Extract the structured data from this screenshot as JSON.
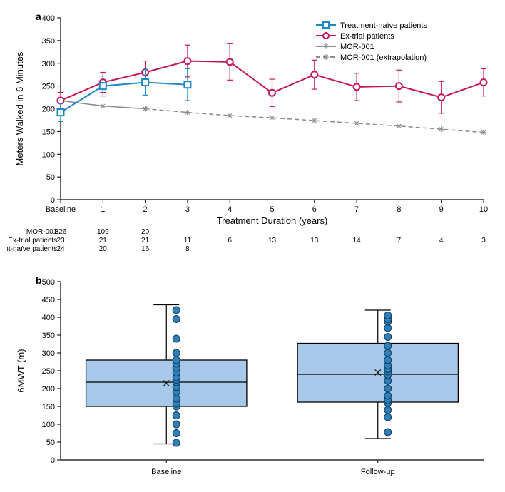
{
  "panelA": {
    "label": "a",
    "ylabel": "Meters Walked in 6 Minutes",
    "xlabel": "Treatment Duration (years)",
    "ylim": [
      0,
      400
    ],
    "ytick_step": 50,
    "x_categories": [
      "Baseline",
      "1",
      "2",
      "3",
      "4",
      "5",
      "6",
      "7",
      "8",
      "9",
      "10"
    ],
    "legend": {
      "naive": "Treatment-naïve patients",
      "extrial": "Ex-trial patients",
      "mor": "MOR-001",
      "mor_ex": "MOR-001 (extrapolation)"
    },
    "series": {
      "naive": {
        "color": "#1e88c7",
        "marker": "square-open",
        "linewidth": 2,
        "points": [
          {
            "x": 0,
            "y": 192,
            "err": 20
          },
          {
            "x": 1,
            "y": 250,
            "err": 22
          },
          {
            "x": 2,
            "y": 258,
            "err": 28
          },
          {
            "x": 3,
            "y": 253,
            "err": 35
          }
        ]
      },
      "extrial": {
        "color": "#c2185b",
        "marker": "circle-open",
        "linewidth": 2,
        "points": [
          {
            "x": 0,
            "y": 218,
            "err": 18
          },
          {
            "x": 1,
            "y": 258,
            "err": 22
          },
          {
            "x": 2,
            "y": 280,
            "err": 25
          },
          {
            "x": 3,
            "y": 305,
            "err": 35
          },
          {
            "x": 4,
            "y": 303,
            "err": 40
          },
          {
            "x": 5,
            "y": 235,
            "err": 30
          },
          {
            "x": 6,
            "y": 275,
            "err": 32
          },
          {
            "x": 7,
            "y": 248,
            "err": 30
          },
          {
            "x": 8,
            "y": 250,
            "err": 35
          },
          {
            "x": 9,
            "y": 225,
            "err": 35
          },
          {
            "x": 10,
            "y": 258,
            "err": 30
          }
        ]
      },
      "mor": {
        "color": "#8a8a8a",
        "marker": "asterisk",
        "linewidth": 1.5,
        "points": [
          {
            "x": 0,
            "y": 218
          },
          {
            "x": 1,
            "y": 206
          },
          {
            "x": 2,
            "y": 200
          }
        ]
      },
      "mor_ex": {
        "color": "#8a8a8a",
        "marker": "asterisk",
        "dash": "6,4",
        "linewidth": 1.5,
        "points": [
          {
            "x": 2,
            "y": 200
          },
          {
            "x": 3,
            "y": 192
          },
          {
            "x": 4,
            "y": 185
          },
          {
            "x": 5,
            "y": 180
          },
          {
            "x": 6,
            "y": 174
          },
          {
            "x": 7,
            "y": 168
          },
          {
            "x": 8,
            "y": 162
          },
          {
            "x": 9,
            "y": 155
          },
          {
            "x": 10,
            "y": 148
          }
        ]
      }
    },
    "count_table": {
      "rows": [
        {
          "label": "MOR-001:",
          "vals": [
            "326",
            "109",
            "20",
            "",
            "",
            "",
            "",
            "",
            "",
            "",
            ""
          ]
        },
        {
          "label": "Ex-trial patients:",
          "vals": [
            "23",
            "21",
            "21",
            "11",
            "6",
            "13",
            "13",
            "14",
            "7",
            "4",
            "3"
          ]
        },
        {
          "label": "Treatment-naïve patients:",
          "vals": [
            "24",
            "20",
            "16",
            "8",
            "",
            "",
            "",
            "",
            "",
            "",
            ""
          ]
        }
      ]
    }
  },
  "panelB": {
    "label": "b",
    "ylabel": "6MWT (m)",
    "ylim": [
      0,
      500
    ],
    "ytick_step": 50,
    "x_categories": [
      "Baseline",
      "Follow-up"
    ],
    "box_fill": "#a7c8e8",
    "box_stroke": "#000000",
    "point_fill": "#2f7fb8",
    "point_stroke": "#0d3a5c",
    "boxes": [
      {
        "x": 0,
        "min": 45,
        "q1": 150,
        "med": 218,
        "q3": 280,
        "max": 435,
        "mean": 215,
        "points": [
          48,
          75,
          100,
          125,
          150,
          158,
          172,
          190,
          205,
          218,
          225,
          232,
          245,
          258,
          270,
          280,
          300,
          340,
          395,
          420
        ]
      },
      {
        "x": 1,
        "min": 60,
        "q1": 162,
        "med": 240,
        "q3": 327,
        "max": 420,
        "mean": 245,
        "points": [
          78,
          120,
          140,
          160,
          168,
          180,
          200,
          222,
          238,
          248,
          255,
          265,
          280,
          300,
          320,
          345,
          370,
          388,
          395,
          405
        ]
      }
    ]
  }
}
